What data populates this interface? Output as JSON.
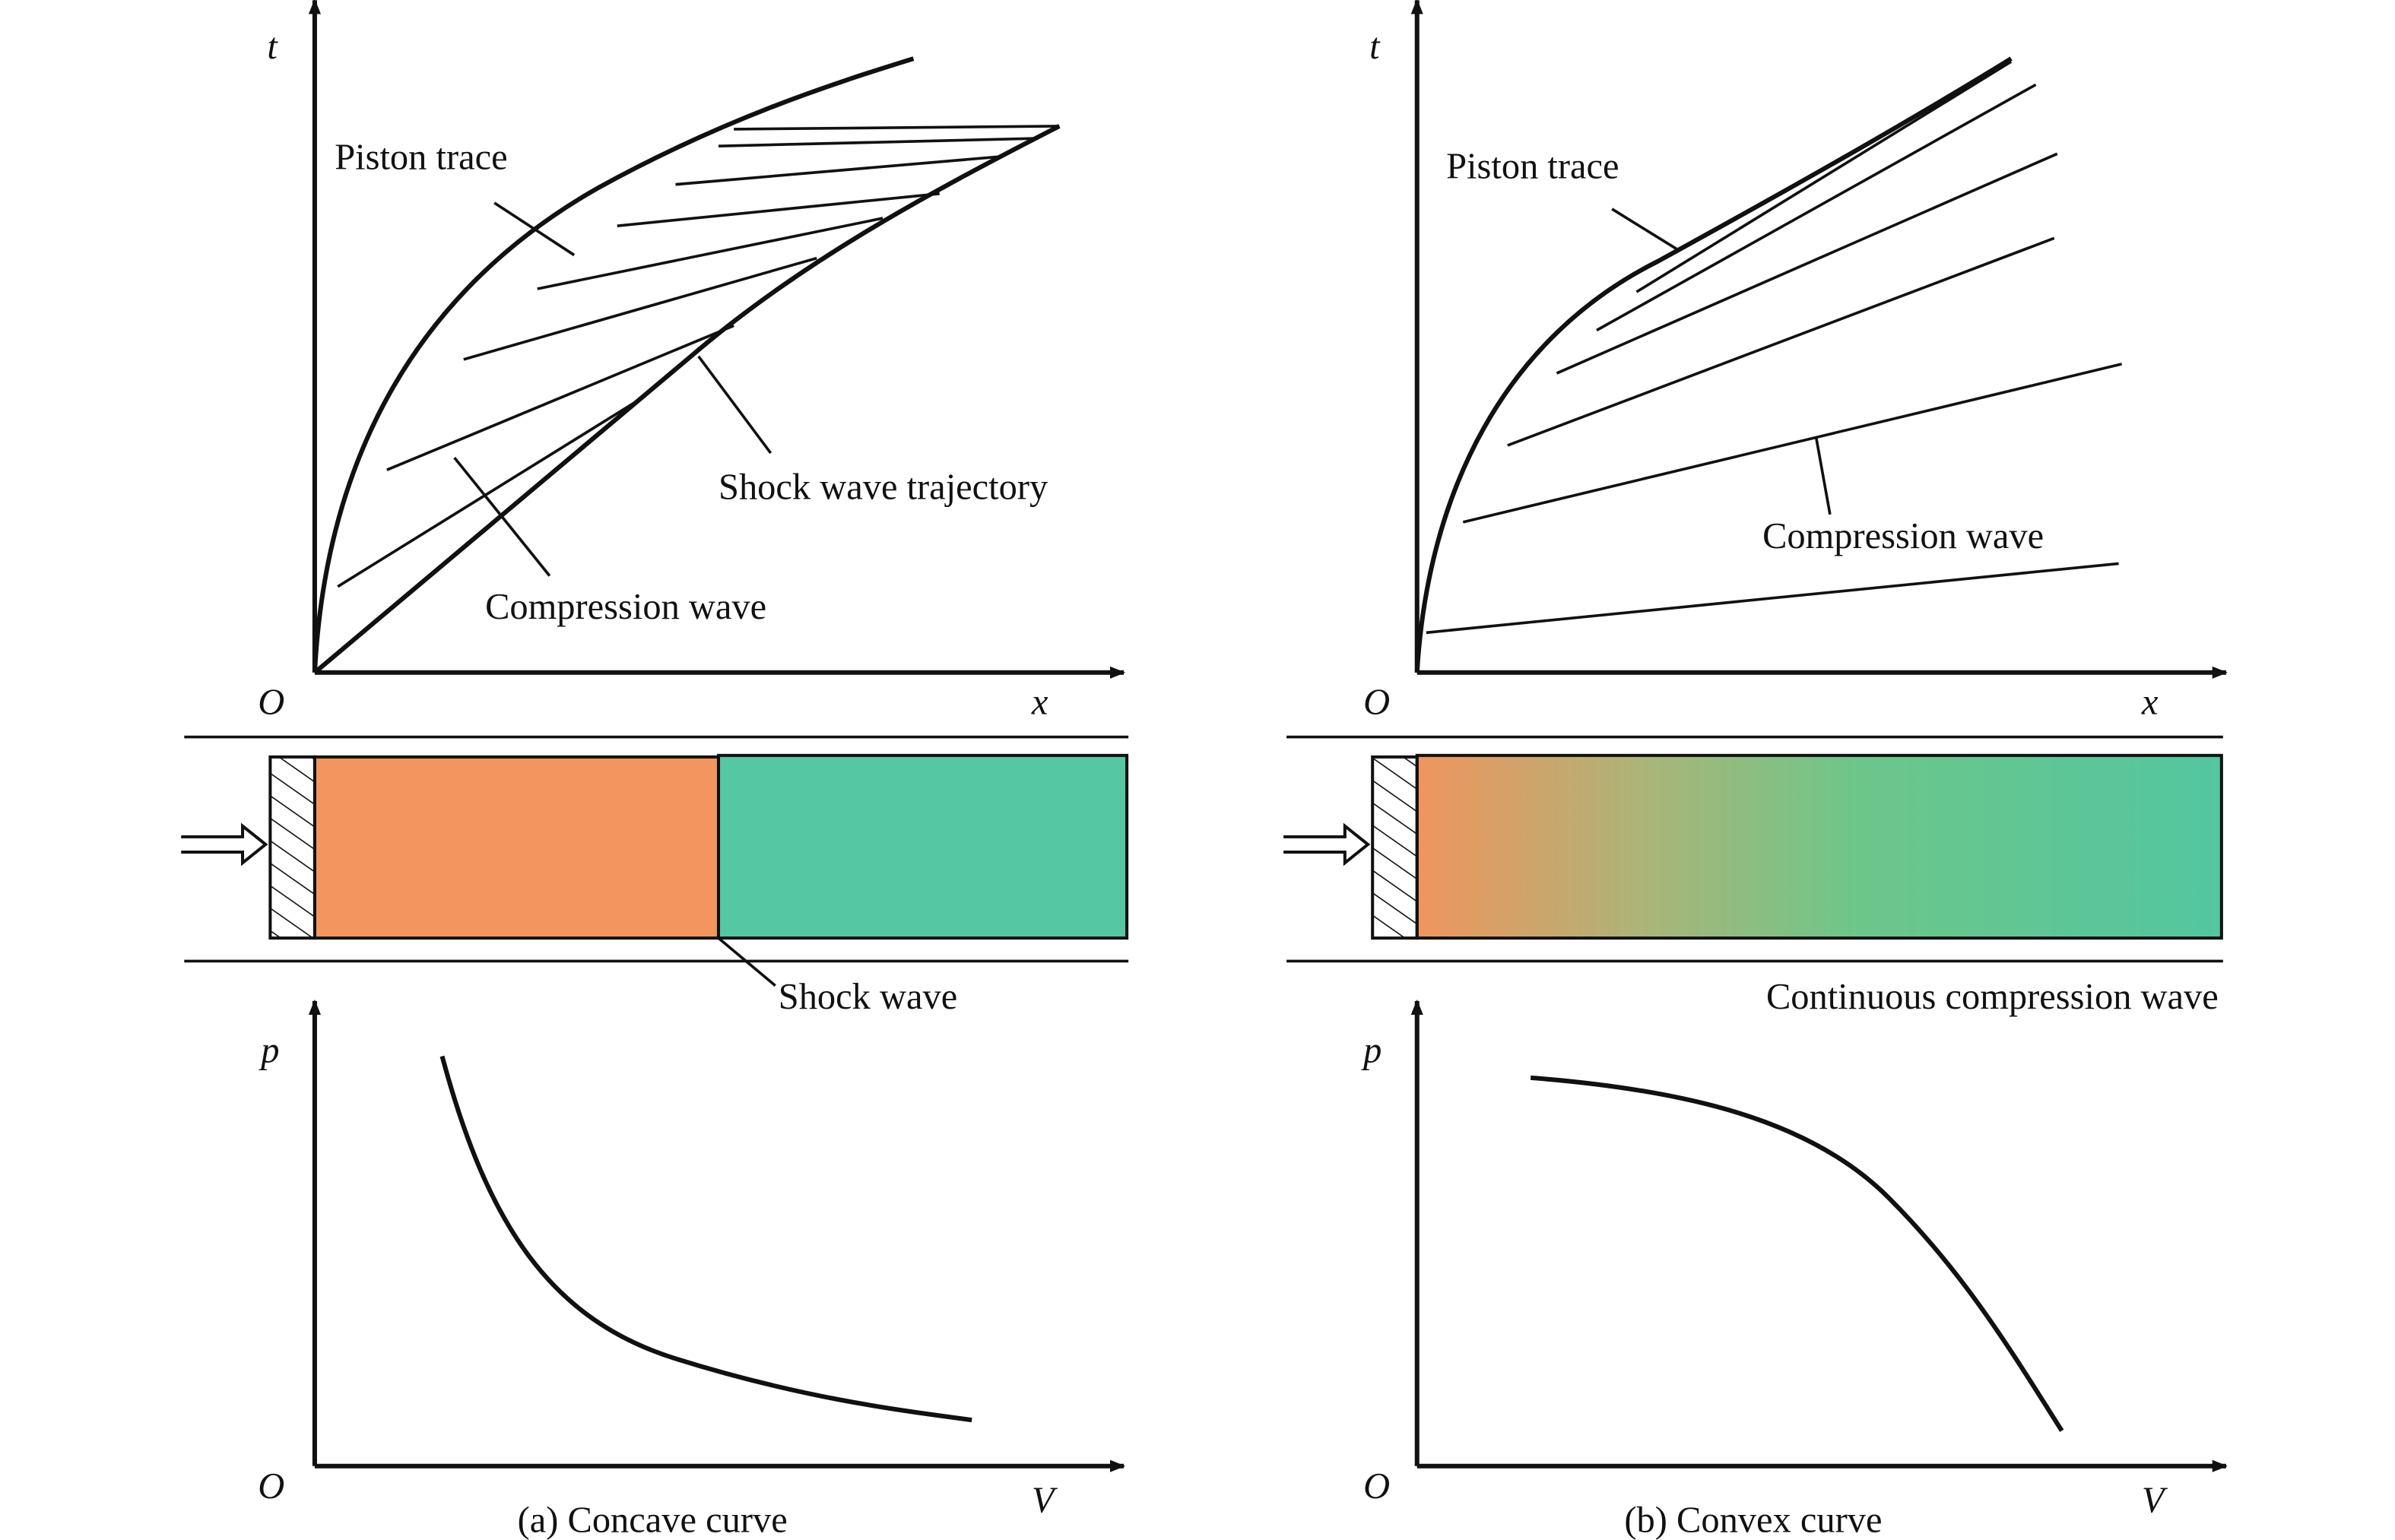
{
  "panels": [
    {
      "caption": "(a) Concave curve",
      "tx_diagram": {
        "t_axis": "t",
        "x_axis": "x",
        "origin": "O",
        "labels": {
          "piston": "Piston trace",
          "shock": "Shock wave trajectory",
          "compression": "Compression wave"
        }
      },
      "tube": {
        "label": "Shock wave"
      },
      "pv_diagram": {
        "p_axis": "p",
        "v_axis": "V",
        "origin": "O"
      }
    },
    {
      "caption": "(b) Convex curve",
      "tx_diagram": {
        "t_axis": "t",
        "x_axis": "x",
        "origin": "O",
        "labels": {
          "piston": "Piston trace",
          "compression": "Compression wave"
        }
      },
      "tube": {
        "label": "Continuous compression wave"
      },
      "pv_diagram": {
        "p_axis": "p",
        "v_axis": "V",
        "origin": "O"
      }
    }
  ]
}
